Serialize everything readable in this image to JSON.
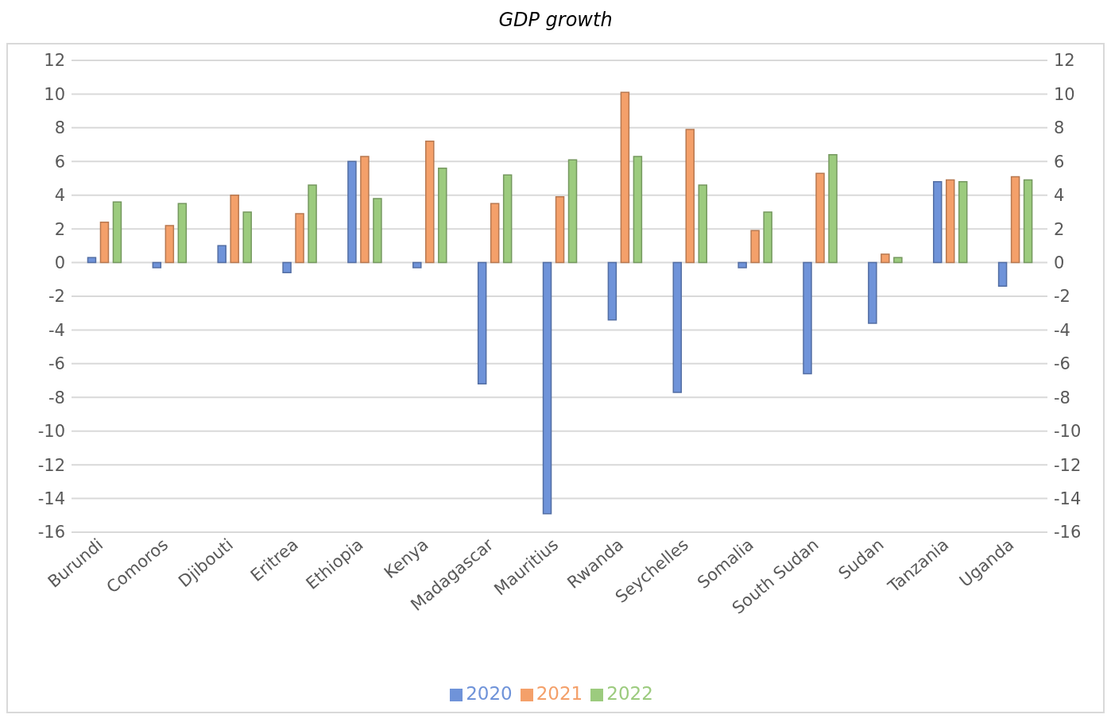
{
  "chart_data": {
    "type": "bar",
    "title": "GDP growth",
    "categories": [
      "Burundi",
      "Comoros",
      "Djibouti",
      "Eritrea",
      "Ethiopia",
      "Kenya",
      "Madagascar",
      "Mauritius",
      "Rwanda",
      "Seychelles",
      "Somalia",
      "South Sudan",
      "Sudan",
      "Tanzania",
      "Uganda"
    ],
    "series": [
      {
        "name": "2020",
        "color": "#6f93d9",
        "values": [
          0.3,
          -0.3,
          1.0,
          -0.6,
          6.0,
          -0.3,
          -7.2,
          -14.9,
          -3.4,
          -7.7,
          -0.3,
          -6.6,
          -3.6,
          4.8,
          -1.4
        ]
      },
      {
        "name": "2021",
        "color": "#f4a06a",
        "values": [
          2.4,
          2.2,
          4.0,
          2.9,
          6.3,
          7.2,
          3.5,
          3.9,
          10.1,
          7.9,
          1.9,
          5.3,
          0.5,
          4.9,
          5.1
        ]
      },
      {
        "name": "2022",
        "color": "#9ccb7e",
        "values": [
          3.6,
          3.5,
          3.0,
          4.6,
          3.8,
          5.6,
          5.2,
          6.1,
          6.3,
          4.6,
          3.0,
          6.4,
          0.3,
          4.8,
          4.9
        ]
      }
    ],
    "ylim": [
      -16,
      12
    ],
    "yticks": [
      -16,
      -14,
      -12,
      -10,
      -8,
      -6,
      -4,
      -2,
      0,
      2,
      4,
      6,
      8,
      10,
      12
    ],
    "y2lim": [
      -16,
      12
    ],
    "y2ticks": [
      -16,
      -14,
      -12,
      -10,
      -8,
      -6,
      -4,
      -2,
      0,
      2,
      4,
      6,
      8,
      10,
      12
    ],
    "grid": "y",
    "legend": "bottom"
  }
}
